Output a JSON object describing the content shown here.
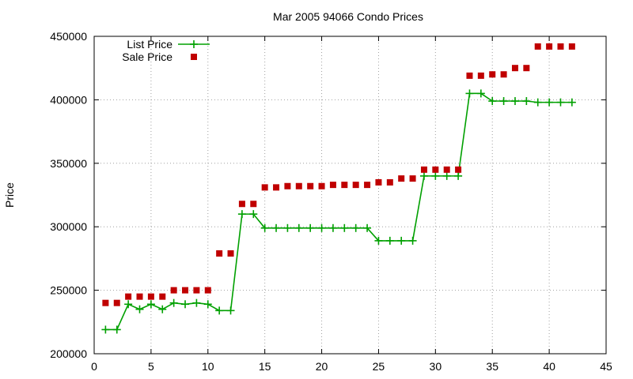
{
  "chart_data": {
    "type": "line",
    "title": "Mar 2005 94066 Condo Prices",
    "xlabel": "",
    "ylabel": "Price",
    "xlim": [
      0,
      45
    ],
    "ylim": [
      200000,
      450000
    ],
    "xticks": [
      0,
      5,
      10,
      15,
      20,
      25,
      30,
      35,
      40,
      45
    ],
    "yticks": [
      200000,
      250000,
      300000,
      350000,
      400000,
      450000
    ],
    "grid": true,
    "legend_position": "top-left",
    "series": [
      {
        "name": "List Price",
        "style": "line-plus",
        "color": "#00a000",
        "x": [
          1,
          2,
          3,
          4,
          5,
          6,
          7,
          8,
          9,
          10,
          11,
          12,
          13,
          14,
          15,
          16,
          17,
          18,
          19,
          20,
          21,
          22,
          23,
          24,
          25,
          26,
          27,
          28,
          29,
          30,
          31,
          32,
          33,
          34,
          35,
          36,
          37,
          38,
          39,
          40,
          41,
          42
        ],
        "y": [
          219000,
          219000,
          239000,
          235000,
          239000,
          235000,
          240000,
          239000,
          240000,
          239000,
          234000,
          234000,
          310000,
          310000,
          299000,
          299000,
          299000,
          299000,
          299000,
          299000,
          299000,
          299000,
          299000,
          299000,
          289000,
          289000,
          289000,
          289000,
          340000,
          340000,
          340000,
          340000,
          405000,
          405000,
          399000,
          399000,
          399000,
          399000,
          398000,
          398000,
          398000,
          398000
        ]
      },
      {
        "name": "Sale Price",
        "style": "square",
        "color": "#c00000",
        "x": [
          1,
          2,
          3,
          4,
          5,
          6,
          7,
          8,
          9,
          10,
          11,
          12,
          13,
          14,
          15,
          16,
          17,
          18,
          19,
          20,
          21,
          22,
          23,
          24,
          25,
          26,
          27,
          28,
          29,
          30,
          31,
          32,
          33,
          34,
          35,
          36,
          37,
          38,
          39,
          40,
          41,
          42
        ],
        "y": [
          240000,
          240000,
          245000,
          245000,
          245000,
          245000,
          250000,
          250000,
          250000,
          250000,
          279000,
          279000,
          318000,
          318000,
          331000,
          331000,
          332000,
          332000,
          332000,
          332000,
          333000,
          333000,
          333000,
          333000,
          335000,
          335000,
          338000,
          338000,
          345000,
          345000,
          345000,
          345000,
          419000,
          419000,
          420000,
          420000,
          425000,
          425000,
          442000,
          442000,
          442000,
          442000
        ]
      }
    ]
  }
}
